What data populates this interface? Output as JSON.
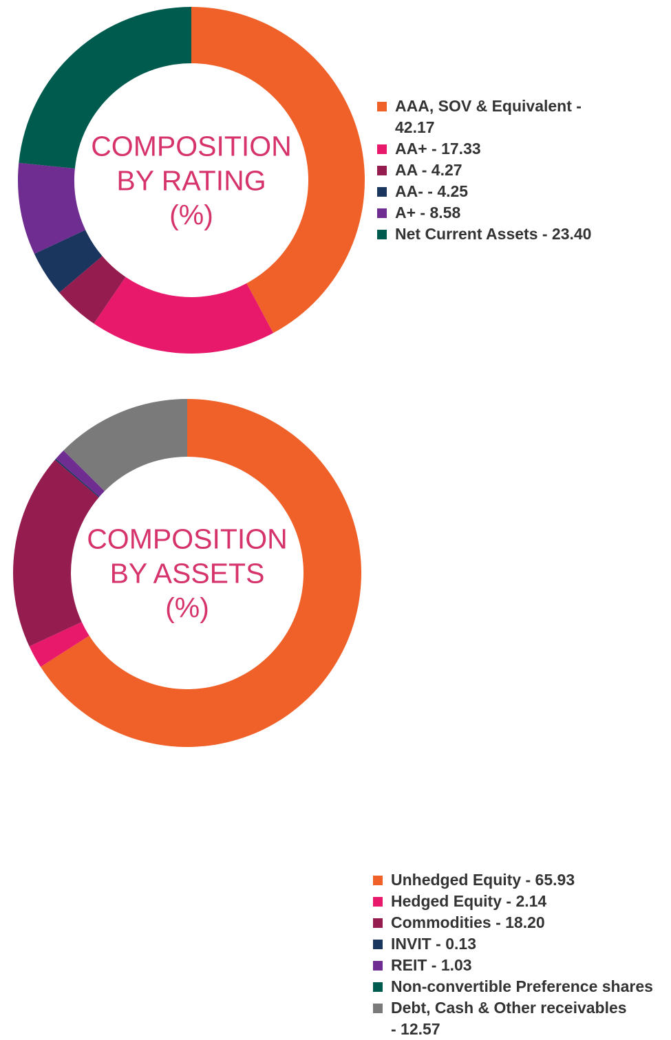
{
  "chart_data": [
    {
      "type": "pie",
      "title": "COMPOSITION\nBY RATING\n(%)",
      "categories": [
        "AAA, SOV & Equivalent",
        "AA+",
        "AA",
        "AA-",
        "A+",
        "Net Current Assets"
      ],
      "values": [
        42.17,
        17.33,
        4.27,
        4.25,
        8.58,
        23.4
      ],
      "colors": [
        "#f0612a",
        "#e8186b",
        "#951c4f",
        "#1b365e",
        "#6f2c91",
        "#005b4f"
      ],
      "legend_labels": [
        "AAA, SOV & Equivalent -\n42.17",
        "AA+ - 17.33",
        "AA - 4.27",
        "AA- - 4.25",
        "A+ - 8.58",
        "Net Current Assets - 23.40"
      ],
      "legend_position": "right"
    },
    {
      "type": "pie",
      "title": "COMPOSITION\nBY ASSETS\n(%)",
      "categories": [
        "Unhedged Equity",
        "Hedged Equity",
        "Commodities",
        "INVIT",
        "REIT",
        "Non-convertible Preference shares",
        "Debt, Cash & Other receivables"
      ],
      "values": [
        65.93,
        2.14,
        18.2,
        0.13,
        1.03,
        0,
        12.57
      ],
      "colors": [
        "#f0612a",
        "#e8186b",
        "#951c4f",
        "#1b365e",
        "#6f2c91",
        "#005b4f",
        "#7a7a7a"
      ],
      "legend_labels": [
        "Unhedged Equity - 65.93",
        "Hedged Equity - 2.14",
        "Commodities - 18.20",
        "INVIT - 0.13",
        "REIT - 1.03",
        "Non-convertible Preference shares",
        "Debt, Cash & Other receivables\n- 12.57"
      ],
      "legend_position": "right"
    }
  ]
}
